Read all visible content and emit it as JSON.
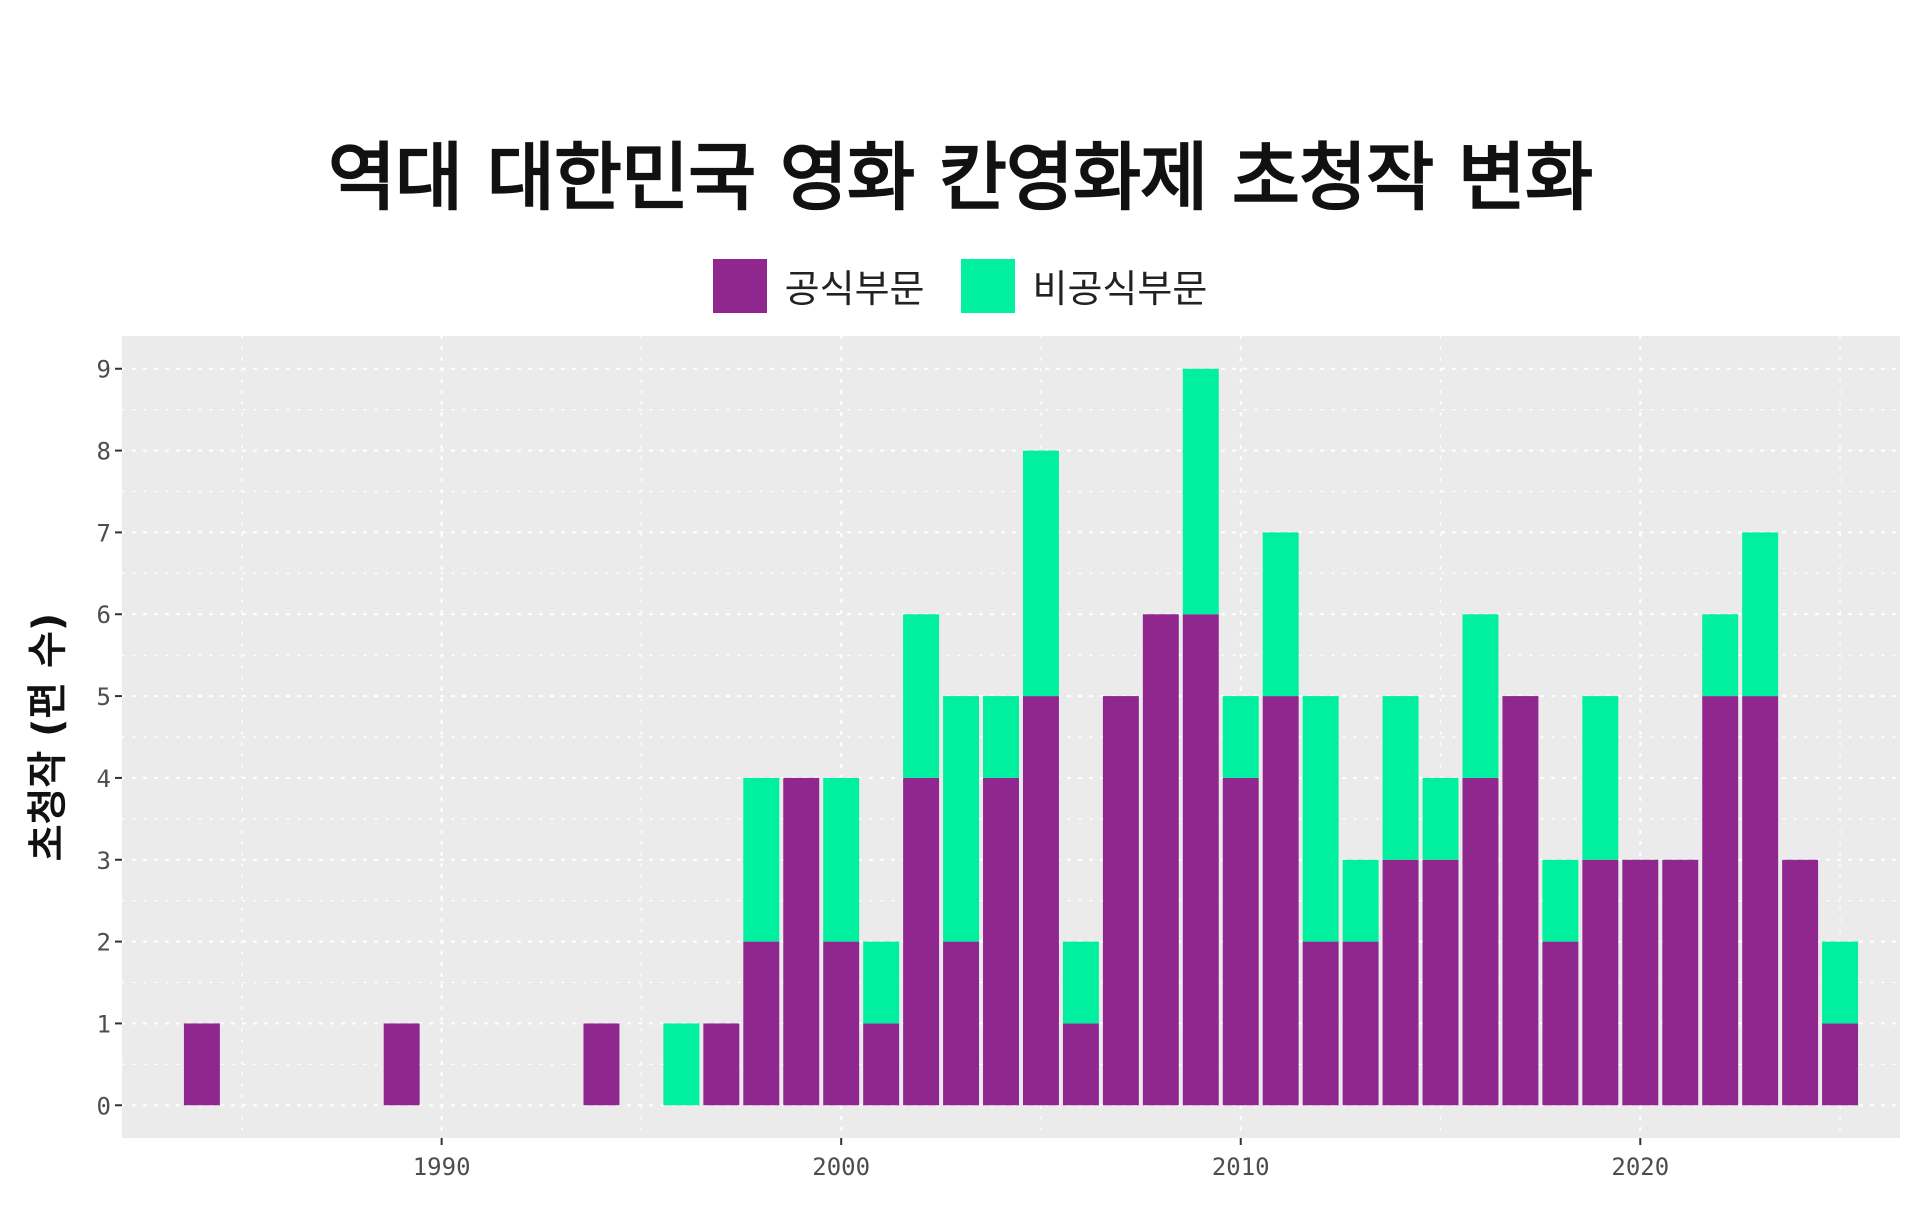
{
  "chart_data": {
    "type": "bar",
    "stacked": true,
    "title": "역대 대한민국 영화 칸영화제 초청작 변화",
    "xlabel": "",
    "ylabel": "초청작 (편 수)",
    "xlim": [
      1982,
      2026.5
    ],
    "ylim": [
      -0.4,
      9.4
    ],
    "x_ticks": [
      1990,
      2000,
      2010,
      2020
    ],
    "y_ticks": [
      0,
      1,
      2,
      3,
      4,
      5,
      6,
      7,
      8,
      9
    ],
    "grid": true,
    "legend_position": "top",
    "colors": {
      "panel_background": "#ebebeb",
      "grid": "#ffffff",
      "official": "#90278e",
      "non_official": "#00f0a0"
    },
    "x": [
      1984,
      1989,
      1994,
      1996,
      1997,
      1998,
      1999,
      2000,
      2001,
      2002,
      2003,
      2004,
      2005,
      2006,
      2007,
      2008,
      2009,
      2010,
      2011,
      2012,
      2013,
      2014,
      2015,
      2016,
      2017,
      2018,
      2019,
      2020,
      2021,
      2022,
      2023,
      2024,
      2025
    ],
    "series": [
      {
        "name": "공식부문",
        "color": "#90278e",
        "values": [
          1,
          1,
          1,
          0,
          1,
          2,
          4,
          2,
          1,
          4,
          2,
          4,
          5,
          1,
          5,
          6,
          6,
          4,
          5,
          2,
          2,
          3,
          3,
          4,
          5,
          2,
          3,
          3,
          3,
          5,
          5,
          3,
          1
        ]
      },
      {
        "name": "비공식부문",
        "color": "#00f0a0",
        "values": [
          0,
          0,
          0,
          1,
          0,
          2,
          0,
          2,
          1,
          2,
          3,
          1,
          3,
          1,
          0,
          0,
          3,
          1,
          2,
          3,
          1,
          2,
          1,
          2,
          0,
          1,
          2,
          0,
          0,
          1,
          2,
          0,
          1
        ]
      }
    ]
  }
}
